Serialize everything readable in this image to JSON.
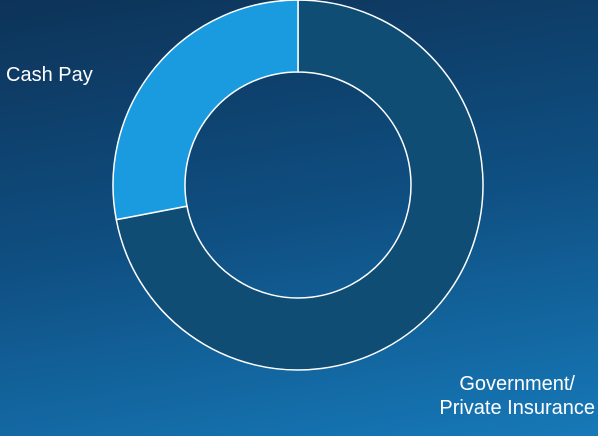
{
  "chart_data": {
    "type": "pie",
    "style": "donut",
    "categories": [
      "Government/ Private Insurance",
      "Cash Pay"
    ],
    "values": [
      72,
      28
    ],
    "colors": [
      "#0f4d75",
      "#1a9be0"
    ],
    "labels": {
      "government_line1": "Government/",
      "government_line2": "Private Insurance",
      "cash": "Cash Pay"
    },
    "title": "",
    "legend": "none"
  }
}
